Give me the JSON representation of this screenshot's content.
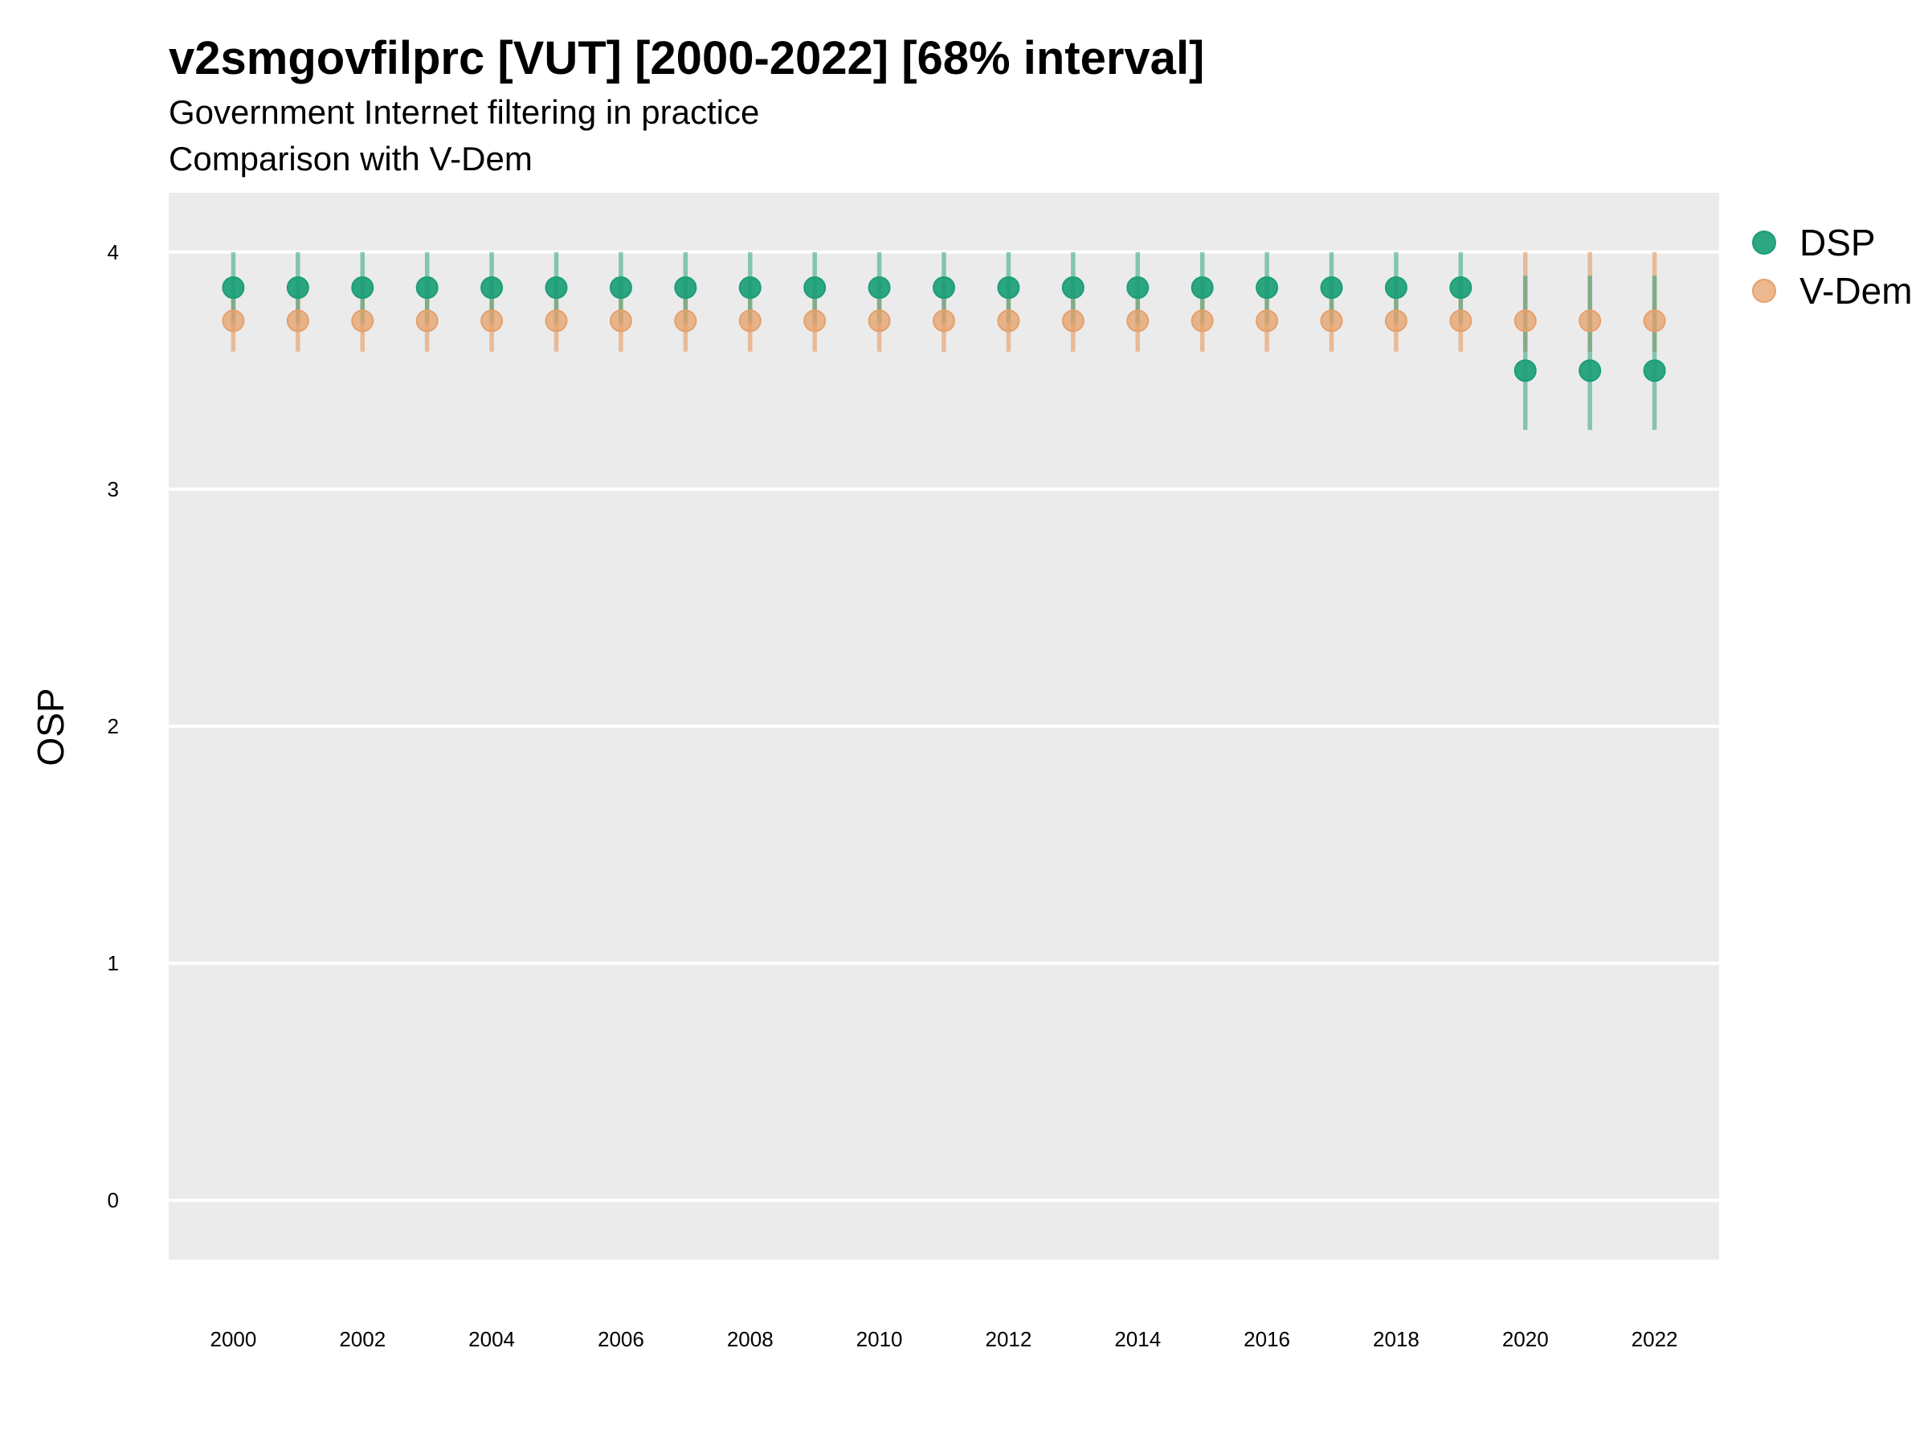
{
  "chart_data": {
    "type": "scatter",
    "title": "v2smgovfilprc [VUT] [2000-2022] [68% interval]",
    "subtitle": "Government Internet filtering in practice",
    "subtitle2": "Comparison with V-Dem",
    "ylabel": "OSP",
    "xlabel": "",
    "ylim": [
      -0.25,
      4.25
    ],
    "yticks": [
      0,
      1,
      2,
      3,
      4
    ],
    "xticks": [
      2000,
      2002,
      2004,
      2006,
      2008,
      2010,
      2012,
      2014,
      2016,
      2018,
      2020,
      2022
    ],
    "xlim": [
      1999,
      2023
    ],
    "grid": true,
    "legend_position": "right",
    "colors": {
      "DSP": "#1b9e77",
      "V-Dem": "#e6a06a",
      "panel": "#ebebeb",
      "grid": "#ffffff"
    },
    "series": [
      {
        "name": "DSP",
        "x": [
          2000,
          2001,
          2002,
          2003,
          2004,
          2005,
          2006,
          2007,
          2008,
          2009,
          2010,
          2011,
          2012,
          2013,
          2014,
          2015,
          2016,
          2017,
          2018,
          2019,
          2020,
          2021,
          2022
        ],
        "y": [
          3.85,
          3.85,
          3.85,
          3.85,
          3.85,
          3.85,
          3.85,
          3.85,
          3.85,
          3.85,
          3.85,
          3.85,
          3.85,
          3.85,
          3.85,
          3.85,
          3.85,
          3.85,
          3.85,
          3.85,
          3.5,
          3.5,
          3.5
        ],
        "lower": [
          3.7,
          3.7,
          3.7,
          3.7,
          3.7,
          3.7,
          3.7,
          3.7,
          3.7,
          3.7,
          3.7,
          3.7,
          3.7,
          3.7,
          3.7,
          3.7,
          3.7,
          3.7,
          3.7,
          3.7,
          3.25,
          3.25,
          3.25
        ],
        "upper": [
          4.0,
          4.0,
          4.0,
          4.0,
          4.0,
          4.0,
          4.0,
          4.0,
          4.0,
          4.0,
          4.0,
          4.0,
          4.0,
          4.0,
          4.0,
          4.0,
          4.0,
          4.0,
          4.0,
          4.0,
          3.9,
          3.9,
          3.9
        ]
      },
      {
        "name": "V-Dem",
        "x": [
          2000,
          2001,
          2002,
          2003,
          2004,
          2005,
          2006,
          2007,
          2008,
          2009,
          2010,
          2011,
          2012,
          2013,
          2014,
          2015,
          2016,
          2017,
          2018,
          2019,
          2020,
          2021,
          2022
        ],
        "y": [
          3.71,
          3.71,
          3.71,
          3.71,
          3.71,
          3.71,
          3.71,
          3.71,
          3.71,
          3.71,
          3.71,
          3.71,
          3.71,
          3.71,
          3.71,
          3.71,
          3.71,
          3.71,
          3.71,
          3.71,
          3.71,
          3.71,
          3.71
        ],
        "lower": [
          3.58,
          3.58,
          3.58,
          3.58,
          3.58,
          3.58,
          3.58,
          3.58,
          3.58,
          3.58,
          3.58,
          3.58,
          3.58,
          3.58,
          3.58,
          3.58,
          3.58,
          3.58,
          3.58,
          3.58,
          3.58,
          3.58,
          3.58
        ],
        "upper": [
          3.88,
          3.88,
          3.88,
          3.88,
          3.88,
          3.88,
          3.88,
          3.88,
          3.88,
          3.88,
          3.88,
          3.88,
          3.88,
          3.88,
          3.88,
          3.88,
          3.88,
          3.88,
          3.88,
          3.88,
          4.0,
          4.0,
          4.0
        ]
      }
    ]
  }
}
